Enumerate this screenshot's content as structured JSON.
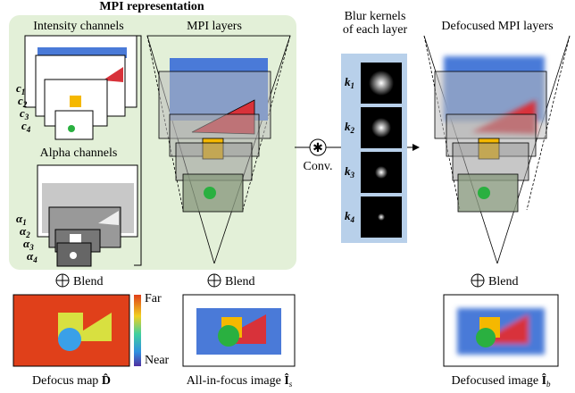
{
  "title": "MPI representation",
  "intensity": {
    "label": "Intensity channels",
    "items": [
      {
        "base": "c",
        "sub": "1"
      },
      {
        "base": "c",
        "sub": "2"
      },
      {
        "base": "c",
        "sub": "3"
      },
      {
        "base": "c",
        "sub": "4"
      }
    ]
  },
  "alpha": {
    "label": "Alpha channels",
    "items": [
      {
        "base": "α",
        "sub": "1"
      },
      {
        "base": "α",
        "sub": "2"
      },
      {
        "base": "α",
        "sub": "3"
      },
      {
        "base": "α",
        "sub": "4"
      }
    ]
  },
  "mpi_layers": "MPI layers",
  "conv": "Conv.",
  "kernels": {
    "label": [
      "Blur kernels",
      "of each layer"
    ],
    "items": [
      {
        "base": "k",
        "sub": "1"
      },
      {
        "base": "k",
        "sub": "2"
      },
      {
        "base": "k",
        "sub": "3"
      },
      {
        "base": "k",
        "sub": "4"
      }
    ]
  },
  "defocused_layers": "Defocused MPI layers",
  "blend": "Blend",
  "colorbar": {
    "far": "Far",
    "near": "Near"
  },
  "captions": [
    {
      "text": "Defocus map ",
      "sym": "D̂",
      "sub": ""
    },
    {
      "text": "All-in-focus image ",
      "sym": "Î",
      "sub": "s"
    },
    {
      "text": "Defocused image ",
      "sym": "Î",
      "sub": "b"
    }
  ]
}
